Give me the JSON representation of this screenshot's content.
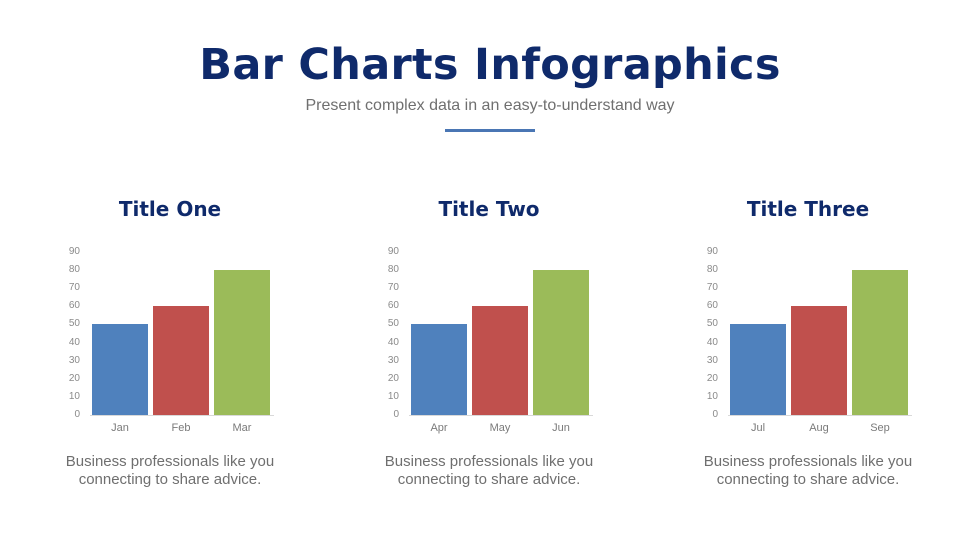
{
  "header": {
    "title": "Bar Charts Infographics",
    "subtitle": "Present complex data in an easy-to-understand way",
    "divider_color": "#4a76b4"
  },
  "axis": {
    "ticks": [
      "90",
      "80",
      "70",
      "60",
      "50",
      "40",
      "30",
      "20",
      "10",
      "0"
    ]
  },
  "colors": {
    "blue": "#4f81bd",
    "red": "#c0504d",
    "green": "#9bbb59",
    "title": "#0f2a6b",
    "text": "#6f6f6f"
  },
  "panels": [
    {
      "title": "Title One",
      "caption_line1": "Business professionals like you",
      "caption_line2": "connecting to share advice.",
      "categories": [
        "Jan",
        "Feb",
        "Mar"
      ],
      "values": [
        50,
        60,
        80
      ]
    },
    {
      "title": "Title Two",
      "caption_line1": "Business professionals like you",
      "caption_line2": "connecting to share advice.",
      "categories": [
        "Apr",
        "May",
        "Jun"
      ],
      "values": [
        50,
        60,
        80
      ]
    },
    {
      "title": "Title Three",
      "caption_line1": "Business professionals like you",
      "caption_line2": "connecting to share advice.",
      "categories": [
        "Jul",
        "Aug",
        "Sep"
      ],
      "values": [
        50,
        60,
        80
      ]
    }
  ],
  "chart_data": [
    {
      "type": "bar",
      "title": "Title One",
      "categories": [
        "Jan",
        "Feb",
        "Mar"
      ],
      "values": [
        50,
        60,
        80
      ],
      "colors": [
        "#4f81bd",
        "#c0504d",
        "#9bbb59"
      ],
      "xlabel": "",
      "ylabel": "",
      "ylim": [
        0,
        90
      ],
      "yticks": [
        0,
        10,
        20,
        30,
        40,
        50,
        60,
        70,
        80,
        90
      ],
      "grid": false,
      "legend": "none"
    },
    {
      "type": "bar",
      "title": "Title Two",
      "categories": [
        "Apr",
        "May",
        "Jun"
      ],
      "values": [
        50,
        60,
        80
      ],
      "colors": [
        "#4f81bd",
        "#c0504d",
        "#9bbb59"
      ],
      "xlabel": "",
      "ylabel": "",
      "ylim": [
        0,
        90
      ],
      "yticks": [
        0,
        10,
        20,
        30,
        40,
        50,
        60,
        70,
        80,
        90
      ],
      "grid": false,
      "legend": "none"
    },
    {
      "type": "bar",
      "title": "Title Three",
      "categories": [
        "Jul",
        "Aug",
        "Sep"
      ],
      "values": [
        50,
        60,
        80
      ],
      "colors": [
        "#4f81bd",
        "#c0504d",
        "#9bbb59"
      ],
      "xlabel": "",
      "ylabel": "",
      "ylim": [
        0,
        90
      ],
      "yticks": [
        0,
        10,
        20,
        30,
        40,
        50,
        60,
        70,
        80,
        90
      ],
      "grid": false,
      "legend": "none"
    }
  ]
}
